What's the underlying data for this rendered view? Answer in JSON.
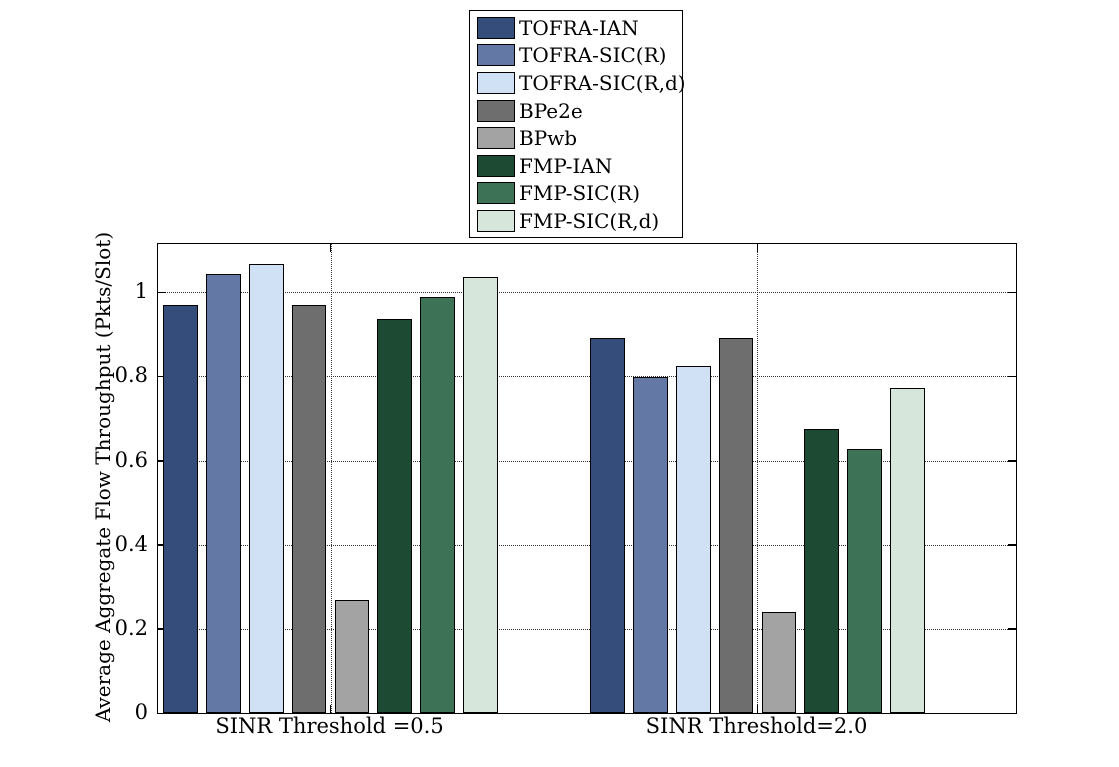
{
  "chart_data": {
    "type": "bar",
    "title": "",
    "xlabel": "",
    "ylabel": "Average Aggregate Flow Throughput (Pkts/Slot)",
    "categories": [
      "SINR Threshold =0.5",
      "SINR Threshold=2.0"
    ],
    "series": [
      {
        "name": "TOFRA-IAN",
        "color": "#344D7A",
        "values": [
          0.97,
          0.891
        ]
      },
      {
        "name": "TOFRA-SIC(R)",
        "color": "#6478A5",
        "values": [
          1.043,
          0.8
        ]
      },
      {
        "name": "TOFRA-SIC(R,d)",
        "color": "#D0E0F5",
        "values": [
          1.067,
          0.824
        ]
      },
      {
        "name": "BPe2e",
        "color": "#6E6E6E",
        "values": [
          0.97,
          0.891
        ]
      },
      {
        "name": "BPwb",
        "color": "#A3A3A3",
        "values": [
          0.268,
          0.24
        ]
      },
      {
        "name": "FMP-IAN",
        "color": "#1D4A32",
        "values": [
          0.936,
          0.676
        ]
      },
      {
        "name": "FMP-SIC(R)",
        "color": "#3D7257",
        "values": [
          0.989,
          0.627
        ]
      },
      {
        "name": "FMP-SIC(R,d)",
        "color": "#D7E6DA",
        "values": [
          1.037,
          0.773
        ]
      }
    ],
    "yticks": [
      {
        "value": 0.0,
        "label": "0"
      },
      {
        "value": 0.2,
        "label": "0.2"
      },
      {
        "value": 0.4,
        "label": "0.4"
      },
      {
        "value": 0.6,
        "label": "0.6"
      },
      {
        "value": 0.8,
        "label": "0.8"
      },
      {
        "value": 1.0,
        "label": "1"
      }
    ],
    "ylim": [
      0,
      1.115
    ],
    "grid": {
      "horizontal": "dotted",
      "vertical": "dotted-at-category-centers"
    },
    "legend_position": "top-center-above-plot",
    "axis_color": "#000000",
    "background_color": "#ffffff"
  }
}
